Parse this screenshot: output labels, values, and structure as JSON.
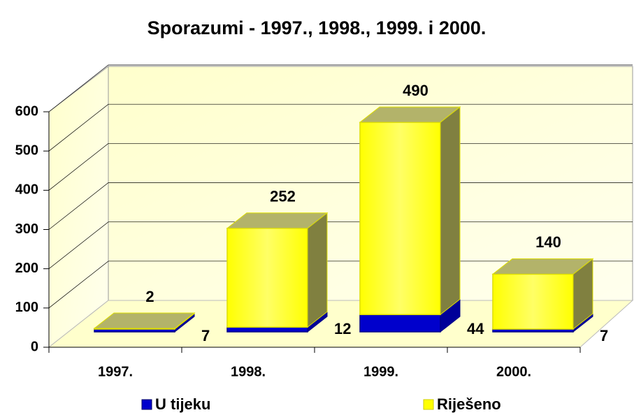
{
  "chart_data": {
    "type": "bar3d_stacked",
    "title": "Sporazumi - 1997., 1998., 1999. i 2000.",
    "categories": [
      "1997.",
      "1998.",
      "1999.",
      "2000."
    ],
    "series": [
      {
        "name": "U tijeku",
        "color": "#0000cc",
        "values": [
          7,
          12,
          44,
          7
        ]
      },
      {
        "name": "Riješeno",
        "color": "#ffff00",
        "values": [
          2,
          252,
          490,
          140
        ]
      }
    ],
    "ylim": [
      0,
      600
    ],
    "yticks": [
      0,
      100,
      200,
      300,
      400,
      500,
      600
    ],
    "grid": true,
    "legend": "bottom"
  }
}
